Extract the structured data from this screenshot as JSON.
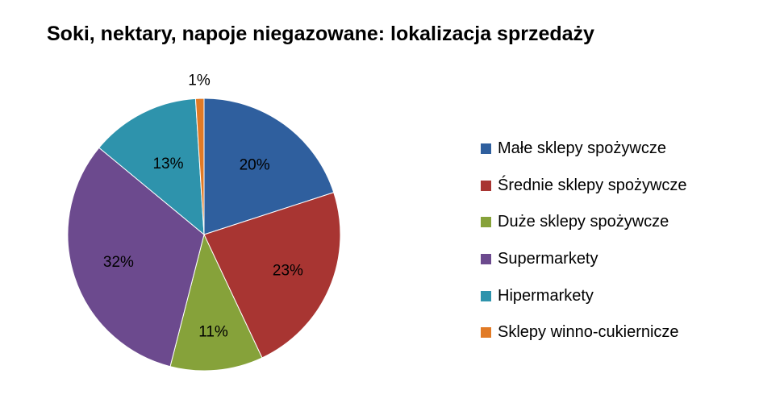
{
  "chart_data": {
    "type": "pie",
    "title": "Soki, nektary, napoje niegazowane: lokalizacja sprzedaży",
    "categories": [
      "Małe sklepy spożywcze",
      "Średnie sklepy spożywcze",
      "Duże sklepy spożywcze",
      "Supermarkety",
      "Hipermarkety",
      "Sklepy winno-cukiernicze"
    ],
    "values": [
      20,
      23,
      11,
      32,
      13,
      1
    ],
    "data_labels": [
      "20%",
      "23%",
      "11%",
      "32%",
      "13%",
      "1%"
    ],
    "colors": [
      "#2F5F9E",
      "#A83532",
      "#86A23A",
      "#6C4A8E",
      "#2E93AC",
      "#E17A25"
    ],
    "legend": "right"
  }
}
